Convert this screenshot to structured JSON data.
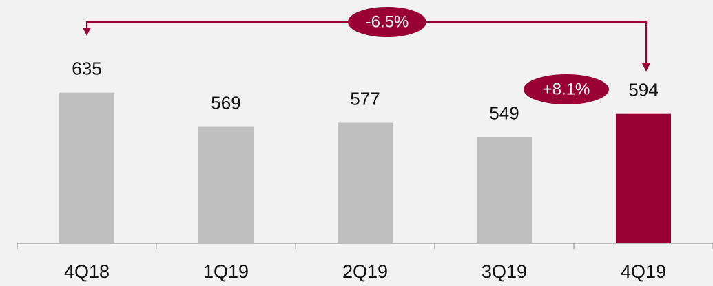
{
  "chart_data": {
    "type": "bar",
    "categories": [
      "4Q18",
      "1Q19",
      "2Q19",
      "3Q19",
      "4Q19"
    ],
    "values": [
      635,
      569,
      577,
      549,
      594
    ],
    "colors": [
      "#bfbfbf",
      "#bfbfbf",
      "#bfbfbf",
      "#bfbfbf",
      "#990033"
    ],
    "ylim": [
      345,
      813
    ],
    "annotations": [
      "-6.5%",
      "+8.1%"
    ]
  }
}
